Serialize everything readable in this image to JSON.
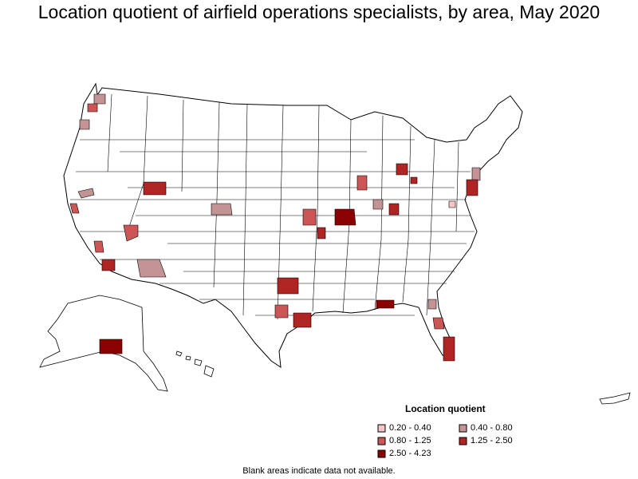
{
  "title": "Location quotient of airfield operations specialists, by area, May 2020",
  "legend": {
    "title": "Location quotient",
    "classes": [
      {
        "label": "0.20 - 0.40",
        "color": "#f4c6c6"
      },
      {
        "label": "0.40 - 0.80",
        "color": "#c49393"
      },
      {
        "label": "0.80 - 1.25",
        "color": "#cc5555"
      },
      {
        "label": "1.25 - 2.50",
        "color": "#b02424"
      },
      {
        "label": "2.50 - 4.23",
        "color": "#8b0000"
      }
    ]
  },
  "footnote": "Blank areas indicate data not available.",
  "colors": {
    "outline": "#000000",
    "land": "#ffffff",
    "background": "#ffffff"
  }
}
